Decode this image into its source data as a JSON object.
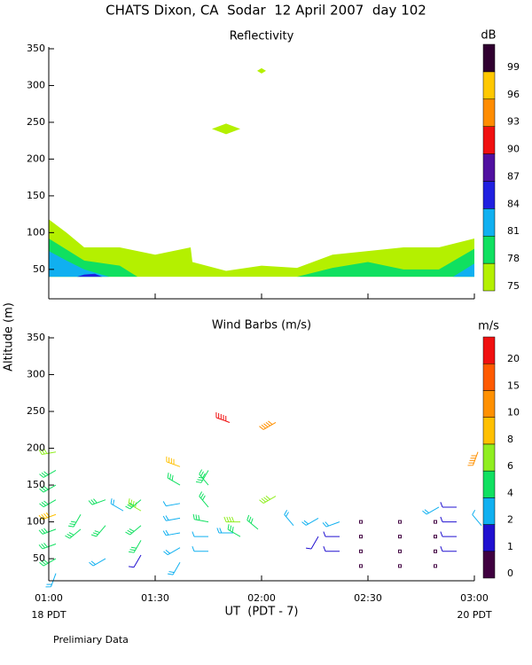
{
  "title": "CHATS Dixon, CA  Sodar  12 April 2007  day 102",
  "y_label": "Altitude (m)",
  "x_label": "UT  (PDT - 7)",
  "footer_left": "18 PDT",
  "footer_right": "20 PDT",
  "note": "Prelimiary Data",
  "chart_data": [
    {
      "type": "contour",
      "title": "Reflectivity",
      "xlim": [
        0,
        120
      ],
      "xticks": [
        0,
        30,
        60,
        90,
        120
      ],
      "ylim": [
        10,
        350
      ],
      "yticks": [
        50,
        100,
        150,
        200,
        250,
        300,
        350
      ],
      "base": 40,
      "series": [
        {
          "color": "#b4f000",
          "x": [
            0,
            5,
            10,
            20,
            30,
            40,
            40.5,
            50,
            60,
            70,
            80,
            90,
            100,
            110,
            120
          ],
          "values": [
            118,
            100,
            80,
            80,
            70,
            80,
            60,
            48,
            55,
            52,
            70,
            75,
            80,
            80,
            92
          ]
        },
        {
          "color": "#10e060",
          "x": [
            0,
            10,
            20,
            25,
            70,
            80,
            90,
            100,
            110,
            120
          ],
          "values": [
            92,
            62,
            55,
            40,
            40,
            52,
            60,
            50,
            50,
            78
          ]
        },
        {
          "color": "#10b0f0",
          "x": [
            0,
            5,
            10,
            17,
            114,
            120
          ],
          "values": [
            75,
            62,
            50,
            40,
            40,
            58
          ]
        },
        {
          "color": "#2020e0",
          "x": [
            8,
            10,
            13,
            15
          ],
          "values": [
            40,
            43,
            44,
            40
          ]
        }
      ],
      "cells": {
        "color": "#b4f000",
        "x": [
          50,
          60
        ],
        "values": [
          241,
          320
        ]
      },
      "colorbar": {
        "label": "dB",
        "ticks": [
          75,
          78,
          81,
          84,
          87,
          90,
          93,
          96,
          99
        ],
        "colors": [
          "#b4f000",
          "#10e060",
          "#10b0f0",
          "#2020e0",
          "#5010a0",
          "#f01010",
          "#ff8c00",
          "#ffc800",
          "#300030"
        ]
      }
    },
    {
      "type": "barbs",
      "title": "Wind Barbs (m/s)",
      "xlim": [
        0,
        120
      ],
      "xticks": [
        {
          "value": 0,
          "label": "01:00"
        },
        {
          "value": 30,
          "label": "01:30"
        },
        {
          "value": 60,
          "label": "02:00"
        },
        {
          "value": 90,
          "label": "02:30"
        },
        {
          "value": 120,
          "label": "03:00"
        }
      ],
      "ylim": [
        20,
        350
      ],
      "yticks": [
        50,
        100,
        150,
        200,
        250,
        300,
        350
      ],
      "barbs": {
        "x": [
          0,
          0,
          0,
          0,
          0,
          0,
          0,
          0,
          0,
          7,
          7,
          14,
          14,
          14,
          19,
          24,
          24,
          24,
          24,
          24,
          35,
          35,
          35,
          35,
          35,
          35,
          35,
          43,
          43,
          43,
          43,
          43,
          43,
          49,
          50,
          52,
          52,
          57,
          62,
          62,
          67,
          74,
          74,
          80,
          80,
          80,
          86,
          86,
          86,
          86,
          97,
          97,
          97,
          97,
          107,
          107,
          107,
          107,
          108,
          113,
          113,
          113,
          113,
          119,
          120
        ],
        "altitude": [
          30,
          50,
          70,
          90,
          110,
          130,
          150,
          170,
          195,
          90,
          110,
          50,
          95,
          130,
          115,
          55,
          75,
          95,
          115,
          130,
          45,
          65,
          85,
          105,
          125,
          150,
          175,
          60,
          80,
          100,
          120,
          150,
          170,
          235,
          85,
          100,
          80,
          90,
          235,
          135,
          95,
          80,
          105,
          100,
          60,
          80,
          40,
          60,
          80,
          100,
          40,
          60,
          80,
          100,
          40,
          60,
          80,
          100,
          120,
          120,
          100,
          80,
          60,
          195,
          95
        ],
        "speed": [
          3,
          5,
          5,
          5,
          8,
          5,
          5,
          5,
          6,
          5,
          5,
          3,
          5,
          5,
          3,
          1,
          5,
          5,
          7,
          5,
          3,
          3,
          3,
          3,
          2,
          5,
          8,
          2,
          2,
          5,
          5,
          5,
          5,
          20,
          3,
          7,
          5,
          5,
          12,
          7,
          3,
          1,
          3,
          3,
          1,
          1,
          0,
          0,
          0,
          0,
          0,
          0,
          0,
          0,
          0,
          0,
          0,
          0,
          3,
          1,
          1,
          1,
          1,
          10,
          2
        ],
        "direction": [
          200,
          240,
          250,
          250,
          250,
          240,
          240,
          240,
          260,
          230,
          210,
          240,
          220,
          250,
          300,
          210,
          210,
          230,
          300,
          230,
          210,
          240,
          260,
          260,
          260,
          300,
          290,
          270,
          270,
          280,
          320,
          320,
          210,
          290,
          270,
          270,
          300,
          310,
          240,
          240,
          320,
          210,
          240,
          250,
          270,
          270,
          0,
          0,
          0,
          0,
          0,
          0,
          0,
          0,
          0,
          0,
          0,
          0,
          240,
          270,
          270,
          270,
          270,
          200,
          320
        ]
      },
      "colorbar": {
        "label": "m/s",
        "ticks": [
          0,
          1,
          2,
          4,
          6,
          8,
          10,
          15,
          20
        ],
        "colors": [
          "#400040",
          "#2010d0",
          "#10b0f0",
          "#10e060",
          "#90ee20",
          "#ffc000",
          "#ff9000",
          "#ff5a00",
          "#f01010"
        ]
      }
    }
  ]
}
